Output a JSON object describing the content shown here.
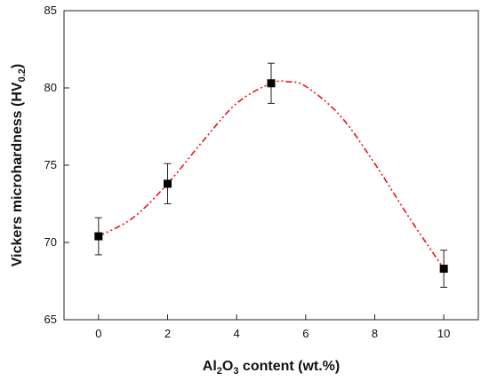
{
  "chart_data": {
    "type": "scatter",
    "xlabel": {
      "pre": "Al",
      "sub1": "2",
      "mid": "O",
      "sub2": "3",
      "post": " content (wt.%)"
    },
    "ylabel": {
      "pre": "Vickers microhardness (HV",
      "sub": "0.2",
      "post": ")"
    },
    "xlim": [
      -1,
      11
    ],
    "ylim": [
      65,
      85
    ],
    "xticks": [
      "0",
      "2",
      "4",
      "6",
      "8",
      "10"
    ],
    "yticks": [
      "65",
      "70",
      "75",
      "80",
      "85"
    ],
    "grid": false,
    "series": [
      {
        "marker": "square",
        "color": "#000000",
        "x": [
          0,
          2,
          5,
          10
        ],
        "y": [
          70.4,
          73.8,
          80.3,
          68.3
        ],
        "yerr": [
          1.2,
          1.3,
          1.3,
          1.2
        ]
      }
    ],
    "fit_curve": {
      "style": "dash-dot-dot",
      "color": "#e8141a",
      "x": [
        0,
        1,
        2,
        3,
        4,
        5,
        5.5,
        6,
        7,
        8,
        9,
        10
      ],
      "y": [
        70.4,
        71.6,
        73.8,
        76.5,
        79.0,
        80.3,
        80.4,
        80.1,
        78.2,
        75.1,
        71.6,
        68.3
      ]
    }
  }
}
